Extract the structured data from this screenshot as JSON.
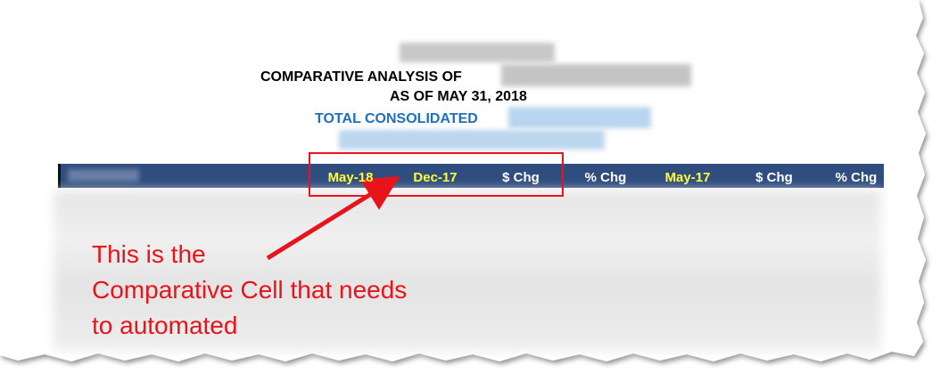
{
  "header": {
    "title": "COMPARATIVE ANALYSIS OF",
    "date_line": "AS OF MAY 31, 2018",
    "entity": "TOTAL CONSOLIDATED"
  },
  "table": {
    "columns": [
      "May-18",
      "Dec-17",
      "$ Chg",
      "% Chg",
      "May-17",
      "$ Chg",
      "% Chg"
    ]
  },
  "annotation": {
    "lines": [
      "This is the",
      "Comparative Cell that needs",
      "to automated"
    ]
  }
}
